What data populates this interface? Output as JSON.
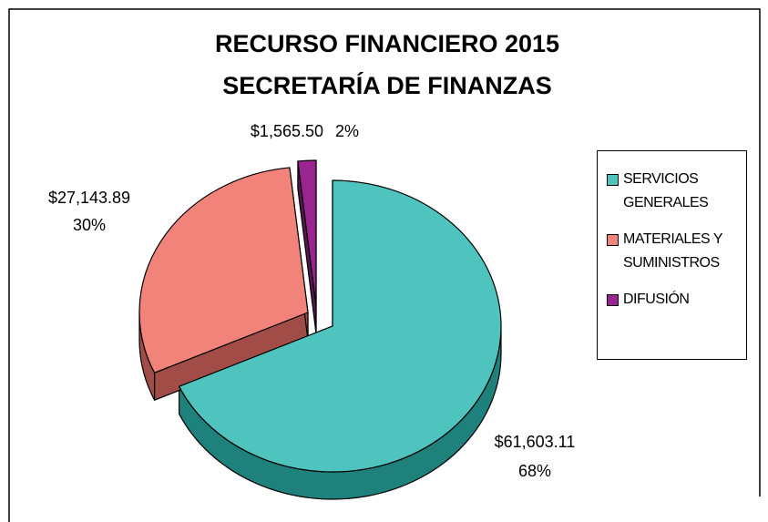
{
  "chart_data": {
    "type": "pie",
    "title": "RECURSO FINANCIERO 2015",
    "subtitle": "SECRETARÍA DE FINANZAS",
    "categories": [
      "SERVICIOS GENERALES",
      "MATERIALES Y SUMINISTROS",
      "DIFUSIÓN"
    ],
    "values": [
      61603.11,
      27143.89,
      1565.5
    ],
    "value_labels": [
      "$61,603.11",
      "$27,143.89",
      "$1,565.50"
    ],
    "percents": [
      68,
      30,
      2
    ],
    "percent_labels": [
      "68%",
      "30%",
      "2%"
    ],
    "colors": [
      "#4fc4bf",
      "#f2837a",
      "#9a2590"
    ],
    "side_colors": [
      "#1f817c",
      "#a24c48",
      "#5a1553"
    ],
    "legend": "right"
  }
}
